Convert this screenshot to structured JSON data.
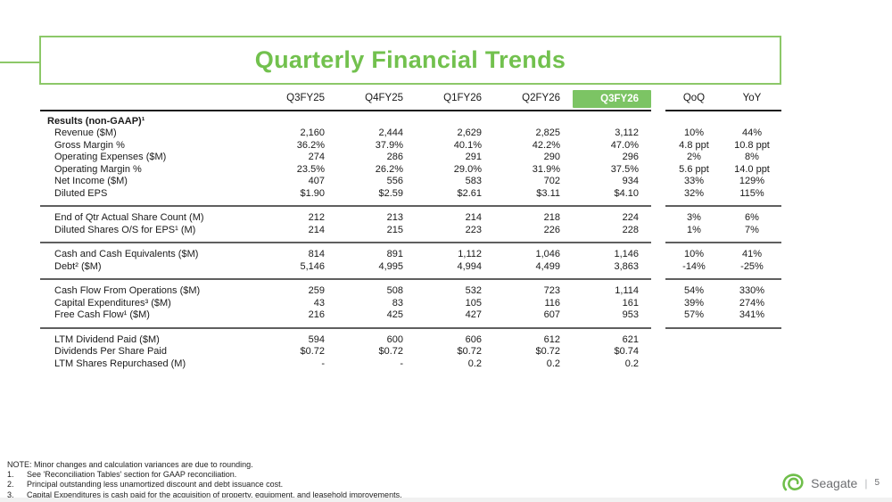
{
  "title": "Quarterly Financial Trends",
  "colors": {
    "accent_green": "#72C14E",
    "highlight_green": "#7CC464",
    "brand_green": "#6EBE49",
    "divider_gray": "#5F5F5F",
    "brand_text_gray": "#6D6E71"
  },
  "table": {
    "columns": [
      "Q3FY25",
      "Q4FY25",
      "Q1FY26",
      "Q2FY26",
      "Q3FY26"
    ],
    "highlight_column": "Q3FY26",
    "change_columns": [
      "QoQ",
      "YoY"
    ],
    "sections": [
      {
        "heading": "Results (non-GAAP)¹",
        "rows": [
          {
            "label": "Revenue ($M)",
            "quarters": [
              "2,160",
              "2,444",
              "2,629",
              "2,825",
              "3,112"
            ],
            "qoq": "10%",
            "yoy": "44%"
          },
          {
            "label": "Gross Margin %",
            "quarters": [
              "36.2%",
              "37.9%",
              "40.1%",
              "42.2%",
              "47.0%"
            ],
            "qoq": "4.8 ppt",
            "yoy": "10.8 ppt"
          },
          {
            "label": "Operating Expenses ($M)",
            "quarters": [
              "274",
              "286",
              "291",
              "290",
              "296"
            ],
            "qoq": "2%",
            "yoy": "8%"
          },
          {
            "label": "Operating Margin %",
            "quarters": [
              "23.5%",
              "26.2%",
              "29.0%",
              "31.9%",
              "37.5%"
            ],
            "qoq": "5.6 ppt",
            "yoy": "14.0 ppt"
          },
          {
            "label": "Net Income ($M)",
            "quarters": [
              "407",
              "556",
              "583",
              "702",
              "934"
            ],
            "qoq": "33%",
            "yoy": "129%"
          },
          {
            "label": "Diluted EPS",
            "quarters": [
              "$1.90",
              "$2.59",
              "$2.61",
              "$3.11",
              "$4.10"
            ],
            "qoq": "32%",
            "yoy": "115%"
          }
        ]
      },
      {
        "heading": null,
        "rows": [
          {
            "label": "End of Qtr Actual Share Count (M)",
            "quarters": [
              "212",
              "213",
              "214",
              "218",
              "224"
            ],
            "qoq": "3%",
            "yoy": "6%"
          },
          {
            "label": "Diluted Shares O/S for EPS¹ (M)",
            "quarters": [
              "214",
              "215",
              "223",
              "226",
              "228"
            ],
            "qoq": "1%",
            "yoy": "7%"
          }
        ]
      },
      {
        "heading": null,
        "rows": [
          {
            "label": "Cash and Cash Equivalents ($M)",
            "quarters": [
              "814",
              "891",
              "1,112",
              "1,046",
              "1,146"
            ],
            "qoq": "10%",
            "yoy": "41%"
          },
          {
            "label": "Debt² ($M)",
            "quarters": [
              "5,146",
              "4,995",
              "4,994",
              "4,499",
              "3,863"
            ],
            "qoq": "-14%",
            "yoy": "-25%"
          }
        ]
      },
      {
        "heading": null,
        "rows": [
          {
            "label": "Cash Flow From Operations ($M)",
            "quarters": [
              "259",
              "508",
              "532",
              "723",
              "1,114"
            ],
            "qoq": "54%",
            "yoy": "330%"
          },
          {
            "label": "Capital Expenditures³ ($M)",
            "quarters": [
              "43",
              "83",
              "105",
              "116",
              "161"
            ],
            "qoq": "39%",
            "yoy": "274%"
          },
          {
            "label": "Free Cash Flow¹ ($M)",
            "quarters": [
              "216",
              "425",
              "427",
              "607",
              "953"
            ],
            "qoq": "57%",
            "yoy": "341%"
          }
        ]
      },
      {
        "heading": null,
        "rows": [
          {
            "label": "LTM Dividend Paid ($M)",
            "quarters": [
              "594",
              "600",
              "606",
              "612",
              "621"
            ],
            "qoq": "",
            "yoy": ""
          },
          {
            "label": "Dividends Per Share Paid",
            "quarters": [
              "$0.72",
              "$0.72",
              "$0.72",
              "$0.72",
              "$0.74"
            ],
            "qoq": "",
            "yoy": ""
          },
          {
            "label": "LTM Shares Repurchased (M)",
            "quarters": [
              "-",
              "-",
              "0.2",
              "0.2",
              "0.2"
            ],
            "qoq": "",
            "yoy": ""
          }
        ]
      }
    ]
  },
  "footnotes": {
    "note": "NOTE: Minor changes and calculation variances are due to rounding.",
    "items": [
      {
        "num": "1.",
        "text": "See 'Reconciliation Tables' section for GAAP reconciliation."
      },
      {
        "num": "2.",
        "text": "Principal outstanding less unamortized discount and debt issuance cost."
      },
      {
        "num": "3.",
        "text": "Capital Expenditures is cash paid for the acquisition of property, equipment, and leasehold improvements."
      }
    ]
  },
  "footer": {
    "brand": "Seagate",
    "page": "5"
  }
}
